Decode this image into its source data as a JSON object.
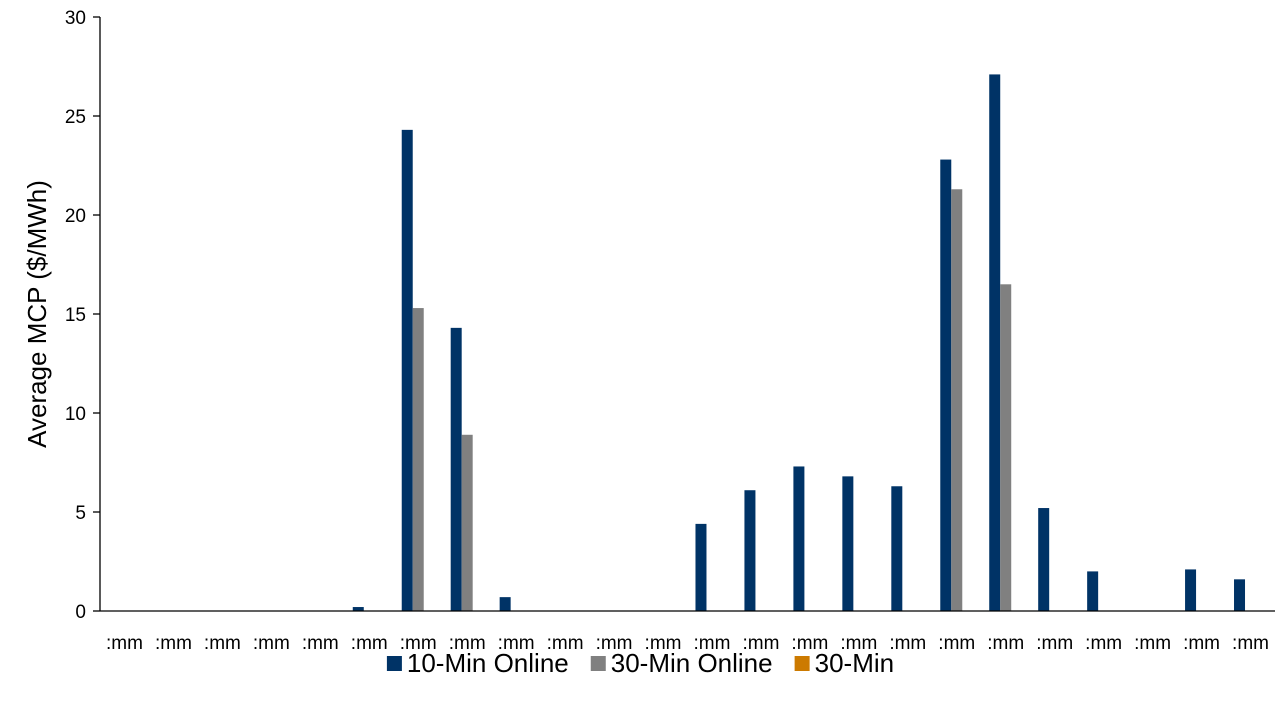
{
  "chart_data": {
    "type": "bar",
    "title": "",
    "xlabel": "",
    "ylabel": "Average MCP ($/MWh)",
    "ylim": [
      0,
      30
    ],
    "yticks": [
      0,
      5,
      10,
      15,
      20,
      25,
      30
    ],
    "grid": false,
    "legend_position": "bottom",
    "categories": [
      ":mm",
      ":mm",
      ":mm",
      ":mm",
      ":mm",
      ":mm",
      ":mm",
      ":mm",
      ":mm",
      ":mm",
      ":mm",
      ":mm",
      ":mm",
      ":mm",
      ":mm",
      ":mm",
      ":mm",
      ":mm",
      ":mm",
      ":mm",
      ":mm",
      ":mm",
      ":mm",
      ":mm"
    ],
    "series": [
      {
        "name": "10-Min Online",
        "color": "#003366",
        "values": [
          0,
          0,
          0,
          0,
          0,
          0.2,
          24.3,
          14.3,
          0.7,
          0,
          0,
          0,
          4.4,
          6.1,
          7.3,
          6.8,
          6.3,
          22.8,
          27.1,
          5.2,
          2.0,
          0,
          2.1,
          1.6
        ]
      },
      {
        "name": "30-Min Online",
        "color": "#808080",
        "values": [
          0,
          0,
          0,
          0,
          0,
          0,
          15.3,
          8.9,
          0,
          0,
          0,
          0,
          0,
          0,
          0,
          0,
          0,
          21.3,
          16.5,
          0,
          0,
          0,
          0,
          0
        ]
      },
      {
        "name": "30-Min",
        "color": "#CC7A00",
        "values": [
          0,
          0,
          0,
          0,
          0,
          0,
          0,
          0,
          0,
          0,
          0,
          0,
          0,
          0,
          0,
          0,
          0,
          0,
          0,
          0,
          0,
          0,
          0,
          0
        ]
      }
    ]
  }
}
